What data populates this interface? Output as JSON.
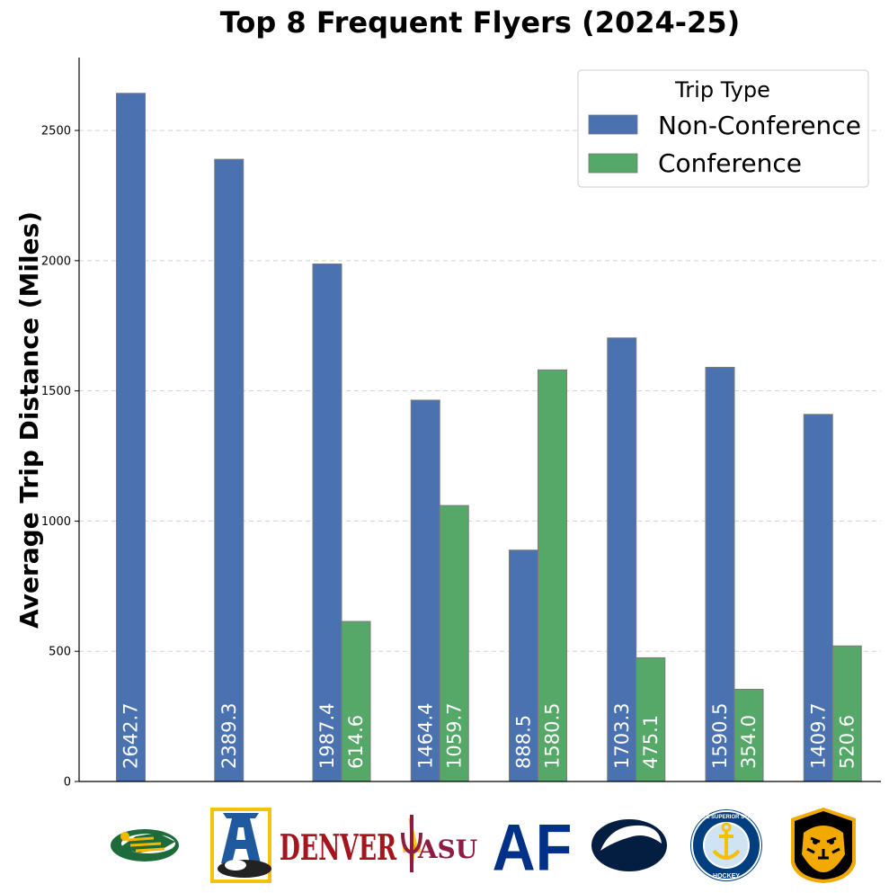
{
  "chart_data": {
    "type": "bar",
    "title": "Top 8 Frequent Flyers (2024-25)",
    "xlabel": "",
    "ylabel": "Average Trip Distance (Miles)",
    "ylim": [
      0,
      2780
    ],
    "yticks": [
      0,
      500,
      1000,
      1500,
      2000,
      2500
    ],
    "grid": "y-dashed",
    "legend": {
      "title": "Trip Type",
      "placement": "top-right"
    },
    "categories": [
      "Alaska Anchorage",
      "Alaska",
      "Denver",
      "Arizona State",
      "Air Force",
      "Penn State",
      "Lake Superior State",
      "Colorado College"
    ],
    "series": [
      {
        "name": "Non-Conference",
        "color": "#4a72b0",
        "values": [
          2642.7,
          2389.3,
          1987.4,
          1464.4,
          888.5,
          1703.3,
          1590.5,
          1409.7
        ],
        "labels": [
          "2642.7",
          "2389.3",
          "1987.4",
          "1464.4",
          "888.5",
          "1703.3",
          "1590.5",
          "1409.7"
        ]
      },
      {
        "name": "Conference",
        "color": "#55a868",
        "values": [
          0,
          0,
          614.6,
          1059.7,
          1580.5,
          475.1,
          354.0,
          520.6
        ],
        "labels": [
          "",
          "",
          "614.6",
          "1059.7",
          "1580.5",
          "475.1",
          "354.0",
          "520.6"
        ]
      }
    ]
  },
  "logos": [
    {
      "icon": "seawolf-logo-icon",
      "color": "#1d6b3a",
      "accent": "#f2b800"
    },
    {
      "icon": "nanook-logo-icon",
      "color": "#1f5a9e",
      "accent": "#f4c20d"
    },
    {
      "icon": "denver-logo-icon",
      "text": "DENVER",
      "color": "#a4151e"
    },
    {
      "icon": "asu-logo-icon",
      "text": "ASU",
      "color": "#8c1d40",
      "accent": "#ffc627"
    },
    {
      "icon": "air-force-logo-icon",
      "text": "AF",
      "color": "#003087"
    },
    {
      "icon": "penn-state-logo-icon",
      "color": "#041e42"
    },
    {
      "icon": "lssu-logo-icon",
      "text": "LAKE SUPERIOR STATE",
      "subtext": "HOCKEY",
      "color": "#003f7f",
      "accent": "#f5c000"
    },
    {
      "icon": "colorado-college-logo-icon",
      "color": "#000000",
      "accent": "#f2a900"
    }
  ]
}
